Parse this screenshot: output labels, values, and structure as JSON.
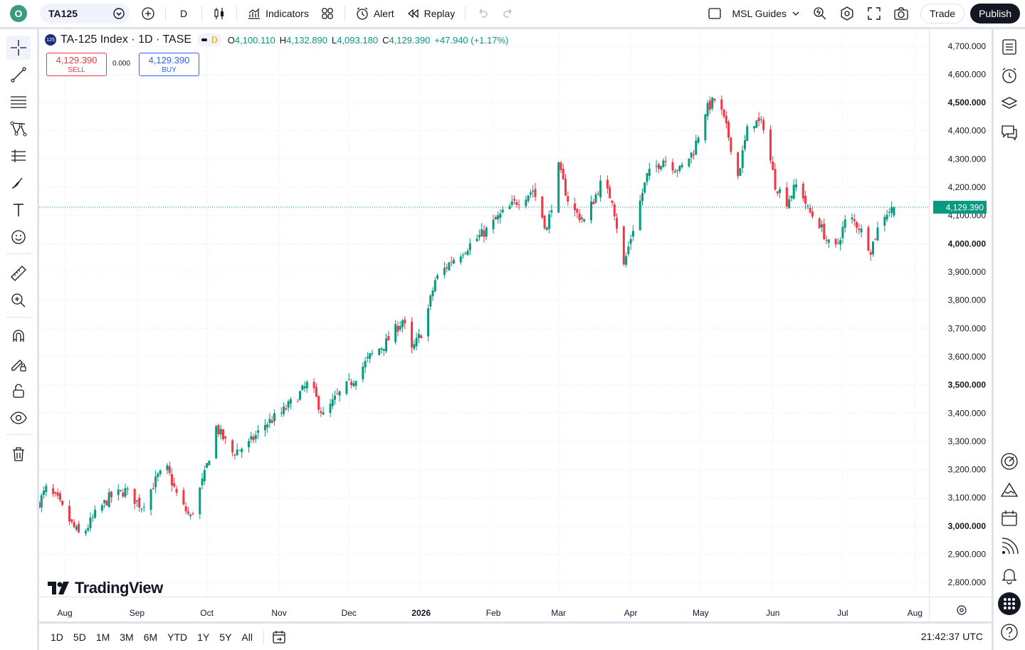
{
  "topbar": {
    "logo_letter": "O",
    "symbol": "TA125",
    "interval": "D",
    "indicators_label": "Indicators",
    "alert_label": "Alert",
    "replay_label": "Replay",
    "layout_name": "MSL Guides",
    "trade_label": "Trade",
    "publish_label": "Publish"
  },
  "legend": {
    "badge": "125",
    "title": "TA-125 Index · 1D · TASE",
    "delay_flag": "D",
    "open_label": "O",
    "open": "4,100.110",
    "high_label": "H",
    "high": "4,132.890",
    "low_label": "L",
    "low": "4,093.180",
    "close_label": "C",
    "close": "4,129.390",
    "change": "+47.940 (+1.17%)"
  },
  "trade": {
    "sell_price": "4,129.390",
    "sell_label": "SELL",
    "spread": "0.000",
    "buy_price": "4,129.390",
    "buy_label": "BUY"
  },
  "watermark": "TradingView",
  "bottom": {
    "ranges": [
      "1D",
      "5D",
      "1M",
      "3M",
      "6M",
      "YTD",
      "1Y",
      "5Y",
      "All"
    ],
    "clock": "21:42:37 UTC"
  },
  "colors": {
    "up": "#089981",
    "down": "#f23645",
    "accent": "#2962ff"
  },
  "chart_data": {
    "type": "candlestick",
    "title": "TA-125 Index · 1D · TASE",
    "y_ticks": [
      "4,700.000",
      "4,600.000",
      "4,500.000",
      "4,400.000",
      "4,300.000",
      "4,200.000",
      "4,100.000",
      "4,000.000",
      "3,900.000",
      "3,800.000",
      "3,700.000",
      "3,600.000",
      "3,500.000",
      "3,400.000",
      "3,300.000",
      "3,200.000",
      "3,100.000",
      "3,000.000",
      "2,900.000",
      "2,800.000"
    ],
    "bold_ticks": [
      "4,500.000",
      "4,000.000",
      "3,500.000",
      "3,000.000"
    ],
    "ylim": [
      2750,
      4760
    ],
    "x_ticks": [
      {
        "label": "Aug",
        "date": "2025-08-01"
      },
      {
        "label": "Sep",
        "date": "2025-09-01"
      },
      {
        "label": "Oct",
        "date": "2025-10-01"
      },
      {
        "label": "Nov",
        "date": "2025-11-01"
      },
      {
        "label": "Dec",
        "date": "2025-12-01"
      },
      {
        "label": "2026",
        "date": "2026-01-01",
        "bold": true
      },
      {
        "label": "Feb",
        "date": "2026-02-01"
      },
      {
        "label": "Mar",
        "date": "2026-03-01"
      },
      {
        "label": "Apr",
        "date": "2026-04-01"
      },
      {
        "label": "May",
        "date": "2026-05-01"
      },
      {
        "label": "Jun",
        "date": "2026-06-01"
      },
      {
        "label": "Jul",
        "date": "2026-07-01"
      },
      {
        "label": "Aug",
        "date": "2026-08-01"
      }
    ],
    "xlim": [
      "2025-07-21",
      "2026-08-07"
    ],
    "last_price": "4,129.390",
    "last_value": 4129.39,
    "anchors": [
      {
        "date": "2025-07-21",
        "close": 3085
      },
      {
        "date": "2025-07-24",
        "close": 3130
      },
      {
        "date": "2025-07-29",
        "close": 3090
      },
      {
        "date": "2025-08-04",
        "close": 3005
      },
      {
        "date": "2025-08-08",
        "close": 2960
      },
      {
        "date": "2025-08-14",
        "close": 3040
      },
      {
        "date": "2025-08-20",
        "close": 3100
      },
      {
        "date": "2025-08-27",
        "close": 3125
      },
      {
        "date": "2025-09-03",
        "close": 3070
      },
      {
        "date": "2025-09-10",
        "close": 3175
      },
      {
        "date": "2025-09-14",
        "close": 3200
      },
      {
        "date": "2025-09-19",
        "close": 3090
      },
      {
        "date": "2025-09-24",
        "close": 3030
      },
      {
        "date": "2025-09-30",
        "close": 3180
      },
      {
        "date": "2025-10-05",
        "close": 3350
      },
      {
        "date": "2025-10-12",
        "close": 3260
      },
      {
        "date": "2025-10-19",
        "close": 3290
      },
      {
        "date": "2025-10-26",
        "close": 3360
      },
      {
        "date": "2025-11-02",
        "close": 3400
      },
      {
        "date": "2025-11-09",
        "close": 3460
      },
      {
        "date": "2025-11-14",
        "close": 3510
      },
      {
        "date": "2025-11-20",
        "close": 3390
      },
      {
        "date": "2025-11-26",
        "close": 3460
      },
      {
        "date": "2025-12-03",
        "close": 3520
      },
      {
        "date": "2025-12-10",
        "close": 3600
      },
      {
        "date": "2025-12-17",
        "close": 3650
      },
      {
        "date": "2025-12-24",
        "close": 3730
      },
      {
        "date": "2025-12-28",
        "close": 3620
      },
      {
        "date": "2026-01-02",
        "close": 3700
      },
      {
        "date": "2026-01-07",
        "close": 3870
      },
      {
        "date": "2026-01-14",
        "close": 3940
      },
      {
        "date": "2026-01-21",
        "close": 3990
      },
      {
        "date": "2026-01-28",
        "close": 4040
      },
      {
        "date": "2026-02-04",
        "close": 4100
      },
      {
        "date": "2026-02-11",
        "close": 4150
      },
      {
        "date": "2026-02-18",
        "close": 4190
      },
      {
        "date": "2026-02-24",
        "close": 4050
      },
      {
        "date": "2026-03-01",
        "close": 4270
      },
      {
        "date": "2026-03-06",
        "close": 4130
      },
      {
        "date": "2026-03-12",
        "close": 4080
      },
      {
        "date": "2026-03-19",
        "close": 4210
      },
      {
        "date": "2026-03-24",
        "close": 4160
      },
      {
        "date": "2026-03-29",
        "close": 3920
      },
      {
        "date": "2026-04-03",
        "close": 4090
      },
      {
        "date": "2026-04-08",
        "close": 4240
      },
      {
        "date": "2026-04-15",
        "close": 4300
      },
      {
        "date": "2026-04-22",
        "close": 4260
      },
      {
        "date": "2026-04-28",
        "close": 4330
      },
      {
        "date": "2026-05-03",
        "close": 4470
      },
      {
        "date": "2026-05-08",
        "close": 4520
      },
      {
        "date": "2026-05-13",
        "close": 4380
      },
      {
        "date": "2026-05-17",
        "close": 4240
      },
      {
        "date": "2026-05-22",
        "close": 4440
      },
      {
        "date": "2026-05-28",
        "close": 4420
      },
      {
        "date": "2026-06-02",
        "close": 4210
      },
      {
        "date": "2026-06-07",
        "close": 4150
      },
      {
        "date": "2026-06-12",
        "close": 4220
      },
      {
        "date": "2026-06-16",
        "close": 4120
      },
      {
        "date": "2026-06-21",
        "close": 4070
      },
      {
        "date": "2026-06-27",
        "close": 3960
      },
      {
        "date": "2026-07-03",
        "close": 4100
      },
      {
        "date": "2026-07-08",
        "close": 4060
      },
      {
        "date": "2026-07-13",
        "close": 3980
      },
      {
        "date": "2026-07-18",
        "close": 4100
      },
      {
        "date": "2026-07-23",
        "close": 4129
      }
    ]
  }
}
